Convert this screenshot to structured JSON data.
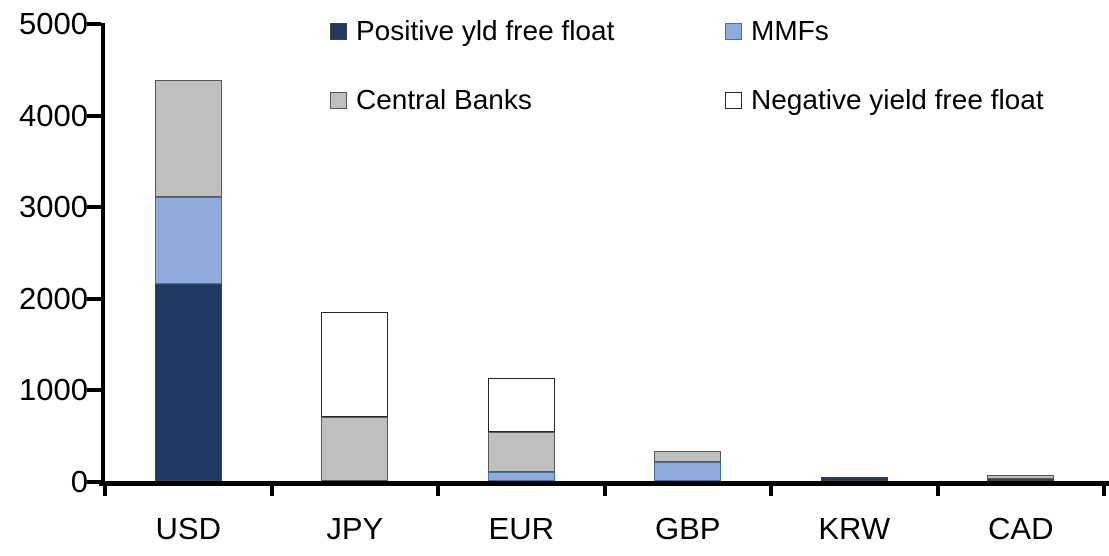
{
  "chart_data": {
    "type": "bar",
    "stacked": true,
    "title": "",
    "xlabel": "",
    "ylabel": "",
    "categories": [
      "USD",
      "JPY",
      "EUR",
      "GBP",
      "KRW",
      "CAD"
    ],
    "series": [
      {
        "name": "Positive yld free float",
        "color": "#1F3864",
        "border": "#404040",
        "values": [
          2150,
          0,
          0,
          0,
          40,
          20
        ]
      },
      {
        "name": "MMFs",
        "color": "#8FAADC",
        "border": "#41719C",
        "values": [
          950,
          0,
          100,
          210,
          0,
          0
        ]
      },
      {
        "name": "Central Banks",
        "color": "#BFBFBF",
        "border": "#595959",
        "values": [
          1280,
          700,
          430,
          120,
          0,
          45
        ]
      },
      {
        "name": "Negative yield free float",
        "color": "#FFFFFF",
        "border": "#262626",
        "values": [
          0,
          1140,
          590,
          0,
          0,
          0
        ]
      }
    ],
    "totals": [
      4380,
      1840,
      1120,
      330,
      40,
      65
    ],
    "ylim": [
      0,
      5000
    ],
    "yticks": [
      "0",
      "1000",
      "2000",
      "3000",
      "4000",
      "5000"
    ],
    "grid": false,
    "legend_position": "top",
    "axis_color": "#000000",
    "background_color": "#FFFFFF"
  }
}
